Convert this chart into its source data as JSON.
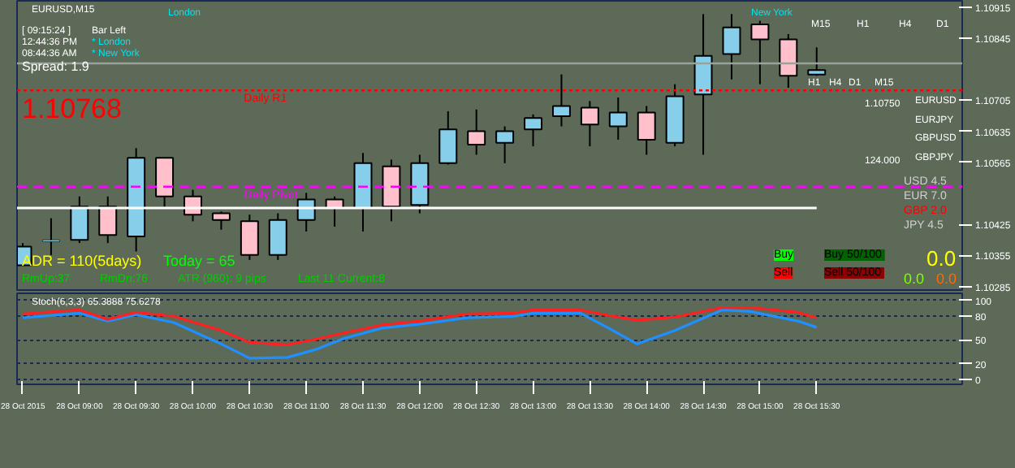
{
  "chart_data": [
    {
      "type": "candlestick",
      "title": "EURUSD,M15",
      "x": [
        "2015-10-28T08:30",
        "2015-10-28T08:45",
        "2015-10-28T09:00",
        "2015-10-28T09:15",
        "2015-10-28T09:30",
        "2015-10-28T09:45",
        "2015-10-28T10:00",
        "2015-10-28T10:15",
        "2015-10-28T10:30",
        "2015-10-28T10:45",
        "2015-10-28T11:00",
        "2015-10-28T11:15",
        "2015-10-28T11:30",
        "2015-10-28T11:45",
        "2015-10-28T12:00",
        "2015-10-28T12:15",
        "2015-10-28T12:30",
        "2015-10-28T12:45",
        "2015-10-28T13:00",
        "2015-10-28T13:15",
        "2015-10-28T13:30",
        "2015-10-28T13:45",
        "2015-10-28T14:00",
        "2015-10-28T14:15",
        "2015-10-28T14:30",
        "2015-10-28T14:45",
        "2015-10-28T15:00",
        "2015-10-28T15:15",
        "2015-10-28T15:30"
      ],
      "ohlc": [
        [
          1.10333,
          1.10383,
          1.10333,
          1.10375
        ],
        [
          1.10386,
          1.10439,
          1.10356,
          1.1039
        ],
        [
          1.1039,
          1.10488,
          1.10383,
          1.10465
        ],
        [
          1.10465,
          1.10488,
          1.10383,
          1.10401
        ],
        [
          1.10398,
          1.10597,
          1.10364,
          1.10575
        ],
        [
          1.10575,
          1.10575,
          1.10465,
          1.10488
        ],
        [
          1.10488,
          1.10503,
          1.10432,
          1.10447
        ],
        [
          1.1045,
          1.10454,
          1.10413,
          1.10435
        ],
        [
          1.10432,
          1.10447,
          1.10345,
          1.10356
        ],
        [
          1.10356,
          1.1045,
          1.10345,
          1.10435
        ],
        [
          1.10435,
          1.10496,
          1.10409,
          1.10481
        ],
        [
          1.10481,
          1.10488,
          1.1042,
          1.10462
        ],
        [
          1.10462,
          1.10586,
          1.10409,
          1.10563
        ],
        [
          1.10556,
          1.10571,
          1.10432,
          1.10465
        ],
        [
          1.10469,
          1.10582,
          1.1045,
          1.10563
        ],
        [
          1.10563,
          1.1068,
          1.1056,
          1.10639
        ],
        [
          1.10635,
          1.10684,
          1.10582,
          1.10605
        ],
        [
          1.10609,
          1.10646,
          1.10563,
          1.10635
        ],
        [
          1.10639,
          1.10673,
          1.10601,
          1.10665
        ],
        [
          1.10669,
          1.10763,
          1.10646,
          1.10692
        ],
        [
          1.10688,
          1.10703,
          1.10601,
          1.1065
        ],
        [
          1.10646,
          1.10711,
          1.10616,
          1.10677
        ],
        [
          1.10677,
          1.10692,
          1.10582,
          1.10616
        ],
        [
          1.10609,
          1.10741,
          1.10601,
          1.10714
        ],
        [
          1.10718,
          1.10899,
          1.10582,
          1.10805
        ],
        [
          1.10809,
          1.10899,
          1.10752,
          1.10869
        ],
        [
          1.10876,
          1.10884,
          1.10741,
          1.10842
        ],
        [
          1.10842,
          1.10854,
          1.10733,
          1.1076
        ],
        [
          1.10763,
          1.10824,
          1.1076,
          1.10773
        ]
      ],
      "colors": [
        "#87ceeb",
        "#87ceeb",
        "#87ceeb",
        "#ffc0cb",
        "#87ceeb",
        "#ffc0cb",
        "#ffc0cb",
        "#ffc0cb",
        "#ffc0cb",
        "#87ceeb",
        "#87ceeb",
        "#ffc0cb",
        "#87ceeb",
        "#ffc0cb",
        "#87ceeb",
        "#87ceeb",
        "#ffc0cb",
        "#87ceeb",
        "#87ceeb",
        "#87ceeb",
        "#ffc0cb",
        "#87ceeb",
        "#ffc0cb",
        "#87ceeb",
        "#87ceeb",
        "#87ceeb",
        "#ffc0cb",
        "#ffc0cb",
        "#87ceeb"
      ],
      "series": [
        {
          "type": "line",
          "color": "#ffffff",
          "x": [
            "2015-10-28T08:27",
            "2015-10-28T15:30"
          ],
          "values": [
            1.10462,
            1.10462
          ]
        }
      ],
      "xlim": [
        "2015-10-28T08:27",
        "2015-10-28T16:47"
      ],
      "ylim": [
        1.10277,
        1.10929
      ],
      "yticks": [
        1.10285,
        1.10355,
        1.10425,
        1.10565,
        1.10635,
        1.10705,
        1.10845,
        1.10915
      ],
      "tick_labels": "y",
      "grid": false,
      "ref_lines": [
        {
          "axis": "y",
          "value": 1.10788,
          "label": null,
          "color": "#9aa39a",
          "line_style": "solid"
        },
        {
          "axis": "y",
          "value": 1.10727,
          "label": "Daily R1",
          "color": "#ff0000",
          "line_style": "dotted"
        },
        {
          "axis": "y",
          "value": 1.1051,
          "label": "Daily Pivot",
          "color": "#ff00ff",
          "line_style": "dashed"
        }
      ],
      "annotations": [
        "[ 09:15:24 ]",
        "Bar Left",
        "12:44:36 PM",
        "* London",
        "08:44:36 AM",
        "* New York",
        "Spread: 1.9",
        "1.10768",
        "ADR = 110(5days)",
        "Today = 65",
        "RmUp:37",
        "RmDn:76",
        "ATR (960): 9 pips",
        "Last 11 Current:8",
        "London",
        "New York",
        "M15",
        "H1",
        "H4",
        "D1",
        "H1",
        "H4",
        "D1",
        "M15",
        "1.10750",
        "EURUSD",
        "EURJPY",
        "GBPUSD",
        "GBPJPY",
        "124.000",
        "USD  4.5",
        "EUR  7.0",
        "GBP  2.0",
        "JPY  4.5",
        "Buy",
        "Buy  50/100",
        "Sell",
        "Sell  50/100",
        "0.0",
        "0.0",
        "0.0"
      ]
    },
    {
      "type": "line",
      "title": "Stoch(6,3,3) 65.3888 75.6278",
      "x": [
        "2015-10-28T08:30",
        "2015-10-28T09:00",
        "2015-10-28T09:15",
        "2015-10-28T09:30",
        "2015-10-28T09:50",
        "2015-10-28T10:15",
        "2015-10-28T10:30",
        "2015-10-28T10:50",
        "2015-10-28T11:05",
        "2015-10-28T11:20",
        "2015-10-28T11:40",
        "2015-10-28T12:00",
        "2015-10-28T12:25",
        "2015-10-28T12:50",
        "2015-10-28T13:00",
        "2015-10-28T13:25",
        "2015-10-28T13:40",
        "2015-10-28T13:55",
        "2015-10-28T14:15",
        "2015-10-28T14:40",
        "2015-10-28T14:55",
        "2015-10-28T15:20",
        "2015-10-28T15:30"
      ],
      "series": [
        {
          "color": "#1e90ff",
          "values": [
            78,
            84,
            74,
            82,
            72,
            45,
            27,
            28,
            38,
            52,
            65,
            70,
            78,
            80,
            84,
            84,
            65,
            45,
            62,
            88,
            86,
            74,
            66
          ]
        },
        {
          "color": "#ff2020",
          "values": [
            83,
            88,
            76,
            85,
            80,
            62,
            47,
            44,
            51,
            59,
            69,
            74,
            83,
            84,
            88,
            88,
            81,
            75,
            79,
            91,
            91,
            85,
            78
          ]
        }
      ],
      "xlim": [
        "2015-10-28T08:27",
        "2015-10-28T16:47"
      ],
      "ylim": [
        -6,
        109
      ],
      "xticks": [
        {
          "value": "2015-10-28T08:30",
          "label": "28 Oct 2015"
        },
        {
          "value": "2015-10-28T09:00",
          "label": "28 Oct 09:00"
        },
        {
          "value": "2015-10-28T09:30",
          "label": "28 Oct 09:30"
        },
        {
          "value": "2015-10-28T10:00",
          "label": "28 Oct 10:00"
        },
        {
          "value": "2015-10-28T10:30",
          "label": "28 Oct 10:30"
        },
        {
          "value": "2015-10-28T11:00",
          "label": "28 Oct 11:00"
        },
        {
          "value": "2015-10-28T11:30",
          "label": "28 Oct 11:30"
        },
        {
          "value": "2015-10-28T12:00",
          "label": "28 Oct 12:00"
        },
        {
          "value": "2015-10-28T12:30",
          "label": "28 Oct 12:30"
        },
        {
          "value": "2015-10-28T13:00",
          "label": "28 Oct 13:00"
        },
        {
          "value": "2015-10-28T13:30",
          "label": "28 Oct 13:30"
        },
        {
          "value": "2015-10-28T14:00",
          "label": "28 Oct 14:00"
        },
        {
          "value": "2015-10-28T14:30",
          "label": "28 Oct 14:30"
        },
        {
          "value": "2015-10-28T15:00",
          "label": "28 Oct 15:00"
        },
        {
          "value": "2015-10-28T15:30",
          "label": "28 Oct 15:30"
        }
      ],
      "yticks": [
        0,
        20,
        50,
        80,
        100
      ],
      "grid": "y",
      "line_style": "solid",
      "marker": "none"
    }
  ]
}
